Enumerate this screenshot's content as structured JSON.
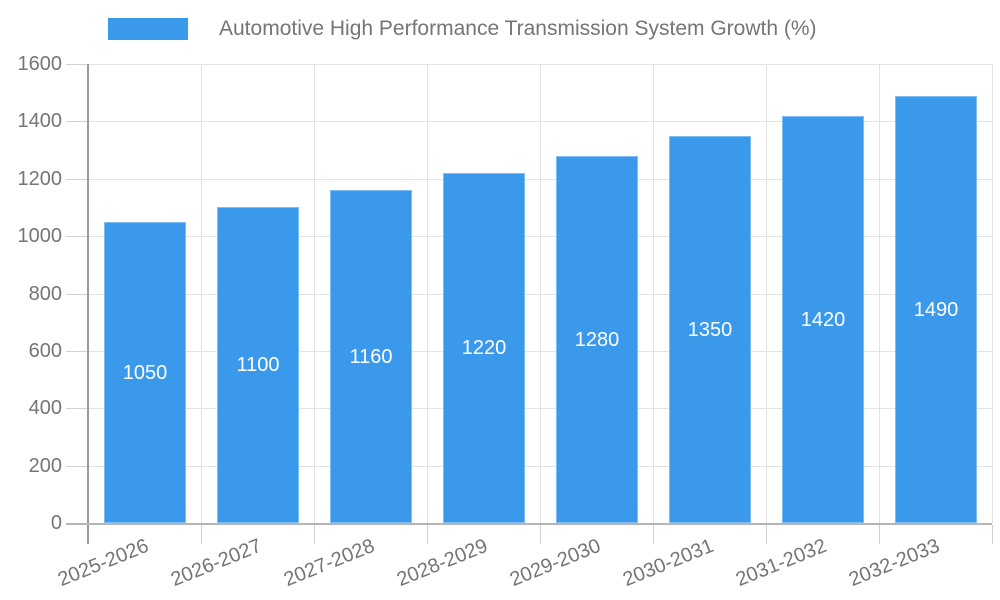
{
  "chart_data": {
    "type": "bar",
    "title": "Automotive High Performance Transmission System Growth (%)",
    "categories": [
      "2025-2026",
      "2026-2027",
      "2027-2028",
      "2028-2029",
      "2029-2030",
      "2030-2031",
      "2031-2032",
      "2032-2033"
    ],
    "values": [
      1050,
      1100,
      1160,
      1220,
      1280,
      1350,
      1420,
      1490
    ],
    "xlabel": "",
    "ylabel": "",
    "ylim": [
      0,
      1600
    ],
    "yticks": [
      0,
      200,
      400,
      600,
      800,
      1000,
      1200,
      1400,
      1600
    ],
    "grid": "horizontal and vertical",
    "legend_position": "top-left",
    "value_label_position": "inside-center-white"
  },
  "colors": {
    "bar_fill": "#3B99EC",
    "bar_edge": "#7FBCF2",
    "grid_line": "#e3e3e3",
    "tick_line": "#d2d2d2",
    "y_axis_line": "#9b9b9b",
    "x_axis_line": "#b5b5b5",
    "tick_label_text": "#757575",
    "legend_text": "#757575",
    "value_label_text": "#ffffff",
    "background": "#ffffff"
  }
}
